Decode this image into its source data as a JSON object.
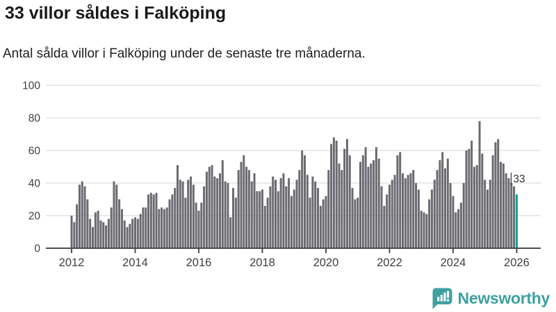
{
  "header": {
    "title": "33 villor såldes i Falköping",
    "subtitle": "Antal sålda villor i Falköping under de senaste tre månaderna."
  },
  "branding": {
    "wordmark": "Newsworthy",
    "color": "#40a0a0"
  },
  "colors": {
    "bar": "#6a6a70",
    "highlight": "#00a0a0",
    "grid": "#e3e3e3",
    "axis": "#4d4d4d",
    "tick_label": "#3f3f3f",
    "annotation": "#333333"
  },
  "chart_data": {
    "type": "bar",
    "title": "33 villor såldes i Falköping",
    "subtitle": "Antal sålda villor i Falköping under de senaste tre månaderna.",
    "xlabel": "",
    "ylabel": "",
    "x_start": "2012-01",
    "x_end": "2026-01",
    "x_interval": "monthly",
    "ylim": [
      0,
      100
    ],
    "yticks": [
      0,
      20,
      40,
      60,
      80,
      100
    ],
    "xtick_labels": [
      "2012",
      "2014",
      "2016",
      "2018",
      "2020",
      "2022",
      "2024",
      "2026"
    ],
    "grid": true,
    "legend": "none",
    "highlight": {
      "index": 168,
      "value": 33,
      "label": "33"
    },
    "values": [
      20,
      16,
      27,
      39,
      41,
      38,
      30,
      18,
      13,
      22,
      23,
      17,
      16,
      14,
      18,
      25,
      41,
      39,
      30,
      24,
      17,
      13,
      15,
      18,
      19,
      18,
      21,
      25,
      25,
      33,
      34,
      33,
      34,
      24,
      25,
      24,
      25,
      30,
      33,
      37,
      51,
      42,
      41,
      31,
      42,
      44,
      39,
      28,
      23,
      28,
      38,
      47,
      50,
      51,
      44,
      43,
      46,
      54,
      41,
      40,
      19,
      37,
      31,
      48,
      53,
      57,
      50,
      48,
      41,
      46,
      35,
      35,
      36,
      26,
      31,
      38,
      44,
      42,
      35,
      43,
      46,
      38,
      43,
      32,
      36,
      42,
      48,
      60,
      57,
      45,
      31,
      44,
      41,
      37,
      26,
      30,
      32,
      48,
      64,
      68,
      66,
      52,
      48,
      61,
      67,
      57,
      37,
      30,
      31,
      53,
      57,
      62,
      50,
      52,
      54,
      62,
      55,
      38,
      26,
      33,
      39,
      42,
      45,
      57,
      59,
      46,
      43,
      45,
      46,
      48,
      40,
      36,
      23,
      22,
      21,
      30,
      36,
      42,
      48,
      54,
      59,
      49,
      55,
      40,
      32,
      22,
      24,
      28,
      40,
      60,
      61,
      66,
      50,
      51,
      78,
      58,
      42,
      36,
      42,
      57,
      65,
      67,
      53,
      52,
      46,
      43,
      40,
      38,
      33
    ]
  }
}
